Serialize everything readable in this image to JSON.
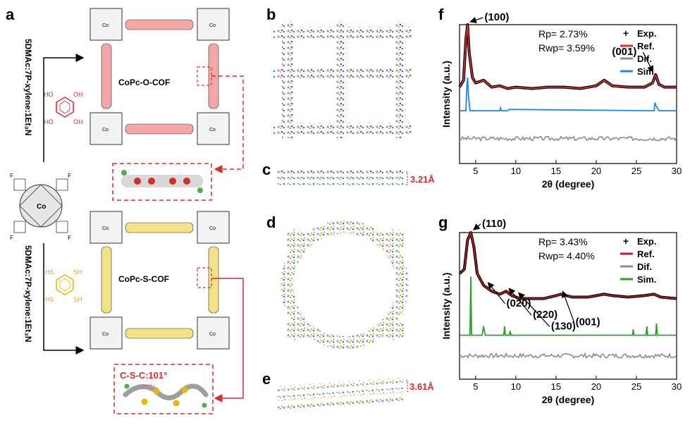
{
  "panels": {
    "a": "a",
    "b": "b",
    "c": "c",
    "d": "d",
    "e": "e",
    "f": "f",
    "g": "g"
  },
  "scheme": {
    "condition_top": "5DMAc:7P-xylene:1Et₃N",
    "condition_bottom": "5DMAc:7P-xylene:1Et₃N",
    "cof_o": "CoPc-O-COF",
    "cof_s": "CoPc-S-COF",
    "angle": "C-S-C:101°",
    "metal": "Co",
    "oh": "OH",
    "ho": "HO",
    "sh": "SH",
    "hs": "HS",
    "f": "F",
    "n": "N",
    "colors": {
      "o_highlight": "#f4a7a7",
      "s_highlight": "#f2e28a",
      "arrow_red": "#d32f2f",
      "o_atom": "#d32f2f",
      "s_atom": "#e6b800"
    }
  },
  "structure": {
    "spacing_c": "3.21Å",
    "spacing_e": "3.61Å"
  },
  "chart_data": [
    {
      "panel": "f",
      "type": "line",
      "xlabel": "2θ (degree)",
      "ylabel": "Intensity (a.u.)",
      "xlim": [
        3,
        30
      ],
      "xticks": [
        5,
        10,
        15,
        20,
        25,
        30
      ],
      "grid": false,
      "legend": "top-right",
      "stats": [
        "Rp= 2.73%",
        "Rwp= 3.59%"
      ],
      "peaks": [
        {
          "label": "(100)",
          "x": 4.0
        },
        {
          "label": "(001)",
          "x": 27.4
        }
      ],
      "series": [
        {
          "name": "Exp.",
          "color": "#000000",
          "marker": "+",
          "x": [
            3.0,
            3.5,
            3.8,
            4.0,
            4.2,
            4.6,
            5,
            6,
            7,
            8,
            9,
            10,
            12,
            14,
            16,
            18,
            20,
            21,
            22,
            24,
            26,
            27,
            27.4,
            27.8,
            28.5,
            30
          ],
          "y": [
            0.55,
            0.6,
            0.9,
            1.0,
            0.8,
            0.62,
            0.58,
            0.6,
            0.55,
            0.56,
            0.54,
            0.55,
            0.54,
            0.55,
            0.55,
            0.54,
            0.56,
            0.6,
            0.56,
            0.55,
            0.55,
            0.58,
            0.64,
            0.57,
            0.55,
            0.55
          ]
        },
        {
          "name": "Ref.",
          "color": "#d32f2f",
          "x": [
            3.0,
            3.5,
            3.8,
            4.0,
            4.2,
            4.6,
            5,
            6,
            7,
            8,
            9,
            10,
            12,
            14,
            16,
            18,
            20,
            21,
            22,
            24,
            26,
            27,
            27.4,
            27.8,
            28.5,
            30
          ],
          "y": [
            0.55,
            0.6,
            0.9,
            1.0,
            0.8,
            0.62,
            0.58,
            0.6,
            0.55,
            0.56,
            0.54,
            0.55,
            0.54,
            0.55,
            0.55,
            0.54,
            0.56,
            0.6,
            0.56,
            0.55,
            0.55,
            0.58,
            0.64,
            0.57,
            0.55,
            0.55
          ]
        },
        {
          "name": "Dif.",
          "color": "#8c8c8c",
          "x": [
            3,
            30
          ],
          "y": [
            0.18,
            0.18
          ]
        },
        {
          "name": "Sim.",
          "color": "#1e88e5",
          "x": [
            3,
            3.8,
            3.9,
            4.0,
            4.1,
            4.3,
            8,
            8.1,
            8.2,
            9,
            9.2,
            27.2,
            27.3,
            27.4,
            27.6,
            27.8,
            30
          ],
          "y": [
            0.38,
            0.38,
            0.55,
            0.62,
            0.5,
            0.38,
            0.38,
            0.4,
            0.38,
            0.38,
            0.39,
            0.38,
            0.44,
            0.42,
            0.4,
            0.38,
            0.38
          ]
        }
      ]
    },
    {
      "panel": "g",
      "type": "line",
      "xlabel": "2θ (degree)",
      "ylabel": "Intensity (a.u.)",
      "xlim": [
        3,
        30
      ],
      "xticks": [
        5,
        10,
        15,
        20,
        25,
        30
      ],
      "grid": false,
      "legend": "top-right",
      "stats": [
        "Rp= 3.43%",
        "Rwp= 4.40%"
      ],
      "peaks": [
        {
          "label": "(110)",
          "x": 4.4
        },
        {
          "label": "(020)",
          "x": 6.2
        },
        {
          "label": "(220)",
          "x": 8.8
        },
        {
          "label": "(130)",
          "x": 10.0
        },
        {
          "label": "(001)",
          "x": 15.5
        }
      ],
      "series": [
        {
          "name": "Exp.",
          "color": "#000000",
          "marker": "+",
          "x": [
            3,
            3.6,
            4.0,
            4.4,
            4.8,
            5.2,
            6,
            7,
            8,
            8.8,
            9.5,
            10.5,
            12,
            13.5,
            15,
            15.6,
            17,
            19,
            21,
            22,
            24,
            26,
            27.2,
            28,
            30
          ],
          "y": [
            0.72,
            0.75,
            0.95,
            1.0,
            0.9,
            0.72,
            0.64,
            0.6,
            0.58,
            0.6,
            0.57,
            0.55,
            0.55,
            0.55,
            0.57,
            0.58,
            0.56,
            0.56,
            0.58,
            0.57,
            0.56,
            0.57,
            0.58,
            0.56,
            0.55
          ]
        },
        {
          "name": "Ref.",
          "color": "#b71c1c",
          "x": [
            3,
            3.6,
            4.0,
            4.4,
            4.8,
            5.2,
            6,
            7,
            8,
            8.8,
            9.5,
            10.5,
            12,
            13.5,
            15,
            15.6,
            17,
            19,
            21,
            22,
            24,
            26,
            27.2,
            28,
            30
          ],
          "y": [
            0.72,
            0.75,
            0.95,
            1.0,
            0.9,
            0.72,
            0.64,
            0.6,
            0.58,
            0.6,
            0.57,
            0.55,
            0.55,
            0.55,
            0.57,
            0.58,
            0.56,
            0.56,
            0.58,
            0.57,
            0.56,
            0.57,
            0.58,
            0.56,
            0.55
          ]
        },
        {
          "name": "Dif.",
          "color": "#8c8c8c",
          "x": [
            3,
            30
          ],
          "y": [
            0.16,
            0.16
          ]
        },
        {
          "name": "Sim.",
          "color": "#2e9e2e",
          "x": [
            3,
            4.3,
            4.4,
            4.5,
            5.8,
            6.0,
            6.2,
            8.5,
            8.6,
            8.7,
            9.2,
            9.3,
            9.4,
            24.5,
            24.6,
            24.7,
            26.2,
            26.3,
            26.4,
            27.4,
            27.5,
            27.6,
            30
          ],
          "y": [
            0.3,
            0.3,
            0.7,
            0.3,
            0.3,
            0.36,
            0.3,
            0.3,
            0.36,
            0.3,
            0.3,
            0.33,
            0.3,
            0.3,
            0.34,
            0.3,
            0.3,
            0.36,
            0.3,
            0.3,
            0.38,
            0.3,
            0.3
          ]
        }
      ]
    }
  ]
}
